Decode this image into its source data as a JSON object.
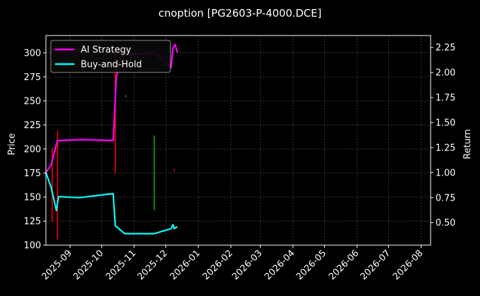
{
  "chart_data": {
    "type": "line",
    "title": "cnoption [PG2603-P-4000.DCE]",
    "xlabel": "",
    "ylabel_left": "Price",
    "ylabel_right": "Return",
    "x_range": [
      "2025-08-09",
      "2026-08-10"
    ],
    "ylim_left": [
      100,
      318
    ],
    "ylim_right": [
      0.275,
      2.37
    ],
    "y_ticks_left": [
      100,
      125,
      150,
      175,
      200,
      225,
      250,
      275,
      300
    ],
    "y_ticks_right": [
      0.5,
      0.75,
      1.0,
      1.25,
      1.5,
      1.75,
      2.0,
      2.25
    ],
    "y_tick_labels_right": [
      "0.50",
      "0.75",
      "1.00",
      "1.25",
      "1.50",
      "1.75",
      "2.00",
      "2.25"
    ],
    "x_ticks": [
      {
        "date": "2025-09-01",
        "label": "2025-09"
      },
      {
        "date": "2025-10-01",
        "label": "2025-10"
      },
      {
        "date": "2025-11-01",
        "label": "2025-11"
      },
      {
        "date": "2025-12-01",
        "label": "2025-12"
      },
      {
        "date": "2026-01-01",
        "label": "2026-01"
      },
      {
        "date": "2026-02-01",
        "label": "2026-02"
      },
      {
        "date": "2026-03-01",
        "label": "2026-03"
      },
      {
        "date": "2026-04-01",
        "label": "2026-04"
      },
      {
        "date": "2026-05-01",
        "label": "2026-05"
      },
      {
        "date": "2026-06-01",
        "label": "2026-06"
      },
      {
        "date": "2026-07-01",
        "label": "2026-07"
      },
      {
        "date": "2026-08-01",
        "label": "2026-08"
      }
    ],
    "grid": true,
    "legend_position": "top-left",
    "series": [
      {
        "name": "AI Strategy",
        "axis": "right",
        "color": "#ff00ff",
        "points": [
          [
            "2025-08-09",
            1.0
          ],
          [
            "2025-08-14",
            1.08
          ],
          [
            "2025-08-20",
            1.32
          ],
          [
            "2025-09-12",
            1.33
          ],
          [
            "2025-10-12",
            1.32
          ],
          [
            "2025-10-15",
            1.95
          ],
          [
            "2025-10-20",
            2.17
          ],
          [
            "2025-11-20",
            2.2
          ],
          [
            "2025-12-06",
            2.05
          ],
          [
            "2025-12-08",
            2.25
          ],
          [
            "2025-12-10",
            2.28
          ],
          [
            "2025-12-12",
            2.2
          ]
        ]
      },
      {
        "name": "Buy-and-Hold",
        "axis": "right",
        "color": "#00ffff",
        "points": [
          [
            "2025-08-09",
            1.0
          ],
          [
            "2025-08-14",
            0.85
          ],
          [
            "2025-08-19",
            0.62
          ],
          [
            "2025-08-21",
            0.76
          ],
          [
            "2025-09-10",
            0.75
          ],
          [
            "2025-10-12",
            0.79
          ],
          [
            "2025-10-14",
            0.47
          ],
          [
            "2025-10-23",
            0.39
          ],
          [
            "2025-11-20",
            0.39
          ],
          [
            "2025-12-06",
            0.44
          ],
          [
            "2025-12-08",
            0.48
          ],
          [
            "2025-12-09",
            0.44
          ],
          [
            "2025-12-12",
            0.46
          ]
        ]
      }
    ],
    "price_bars": [
      {
        "date": "2025-08-15",
        "low": 124,
        "high": 201,
        "color": "#ff0000"
      },
      {
        "date": "2025-08-20",
        "low": 106,
        "high": 219,
        "color": "#ff0000"
      },
      {
        "date": "2025-10-14",
        "low": 175,
        "high": 307,
        "color": "#ff0000"
      },
      {
        "date": "2025-11-20",
        "low": 136,
        "high": 214,
        "color": "#00aa00"
      },
      {
        "date": "2025-10-24",
        "low": 254,
        "high": 256,
        "color": "#00aa00"
      },
      {
        "date": "2025-12-09",
        "low": 177,
        "high": 179,
        "color": "#ff0000"
      }
    ]
  }
}
